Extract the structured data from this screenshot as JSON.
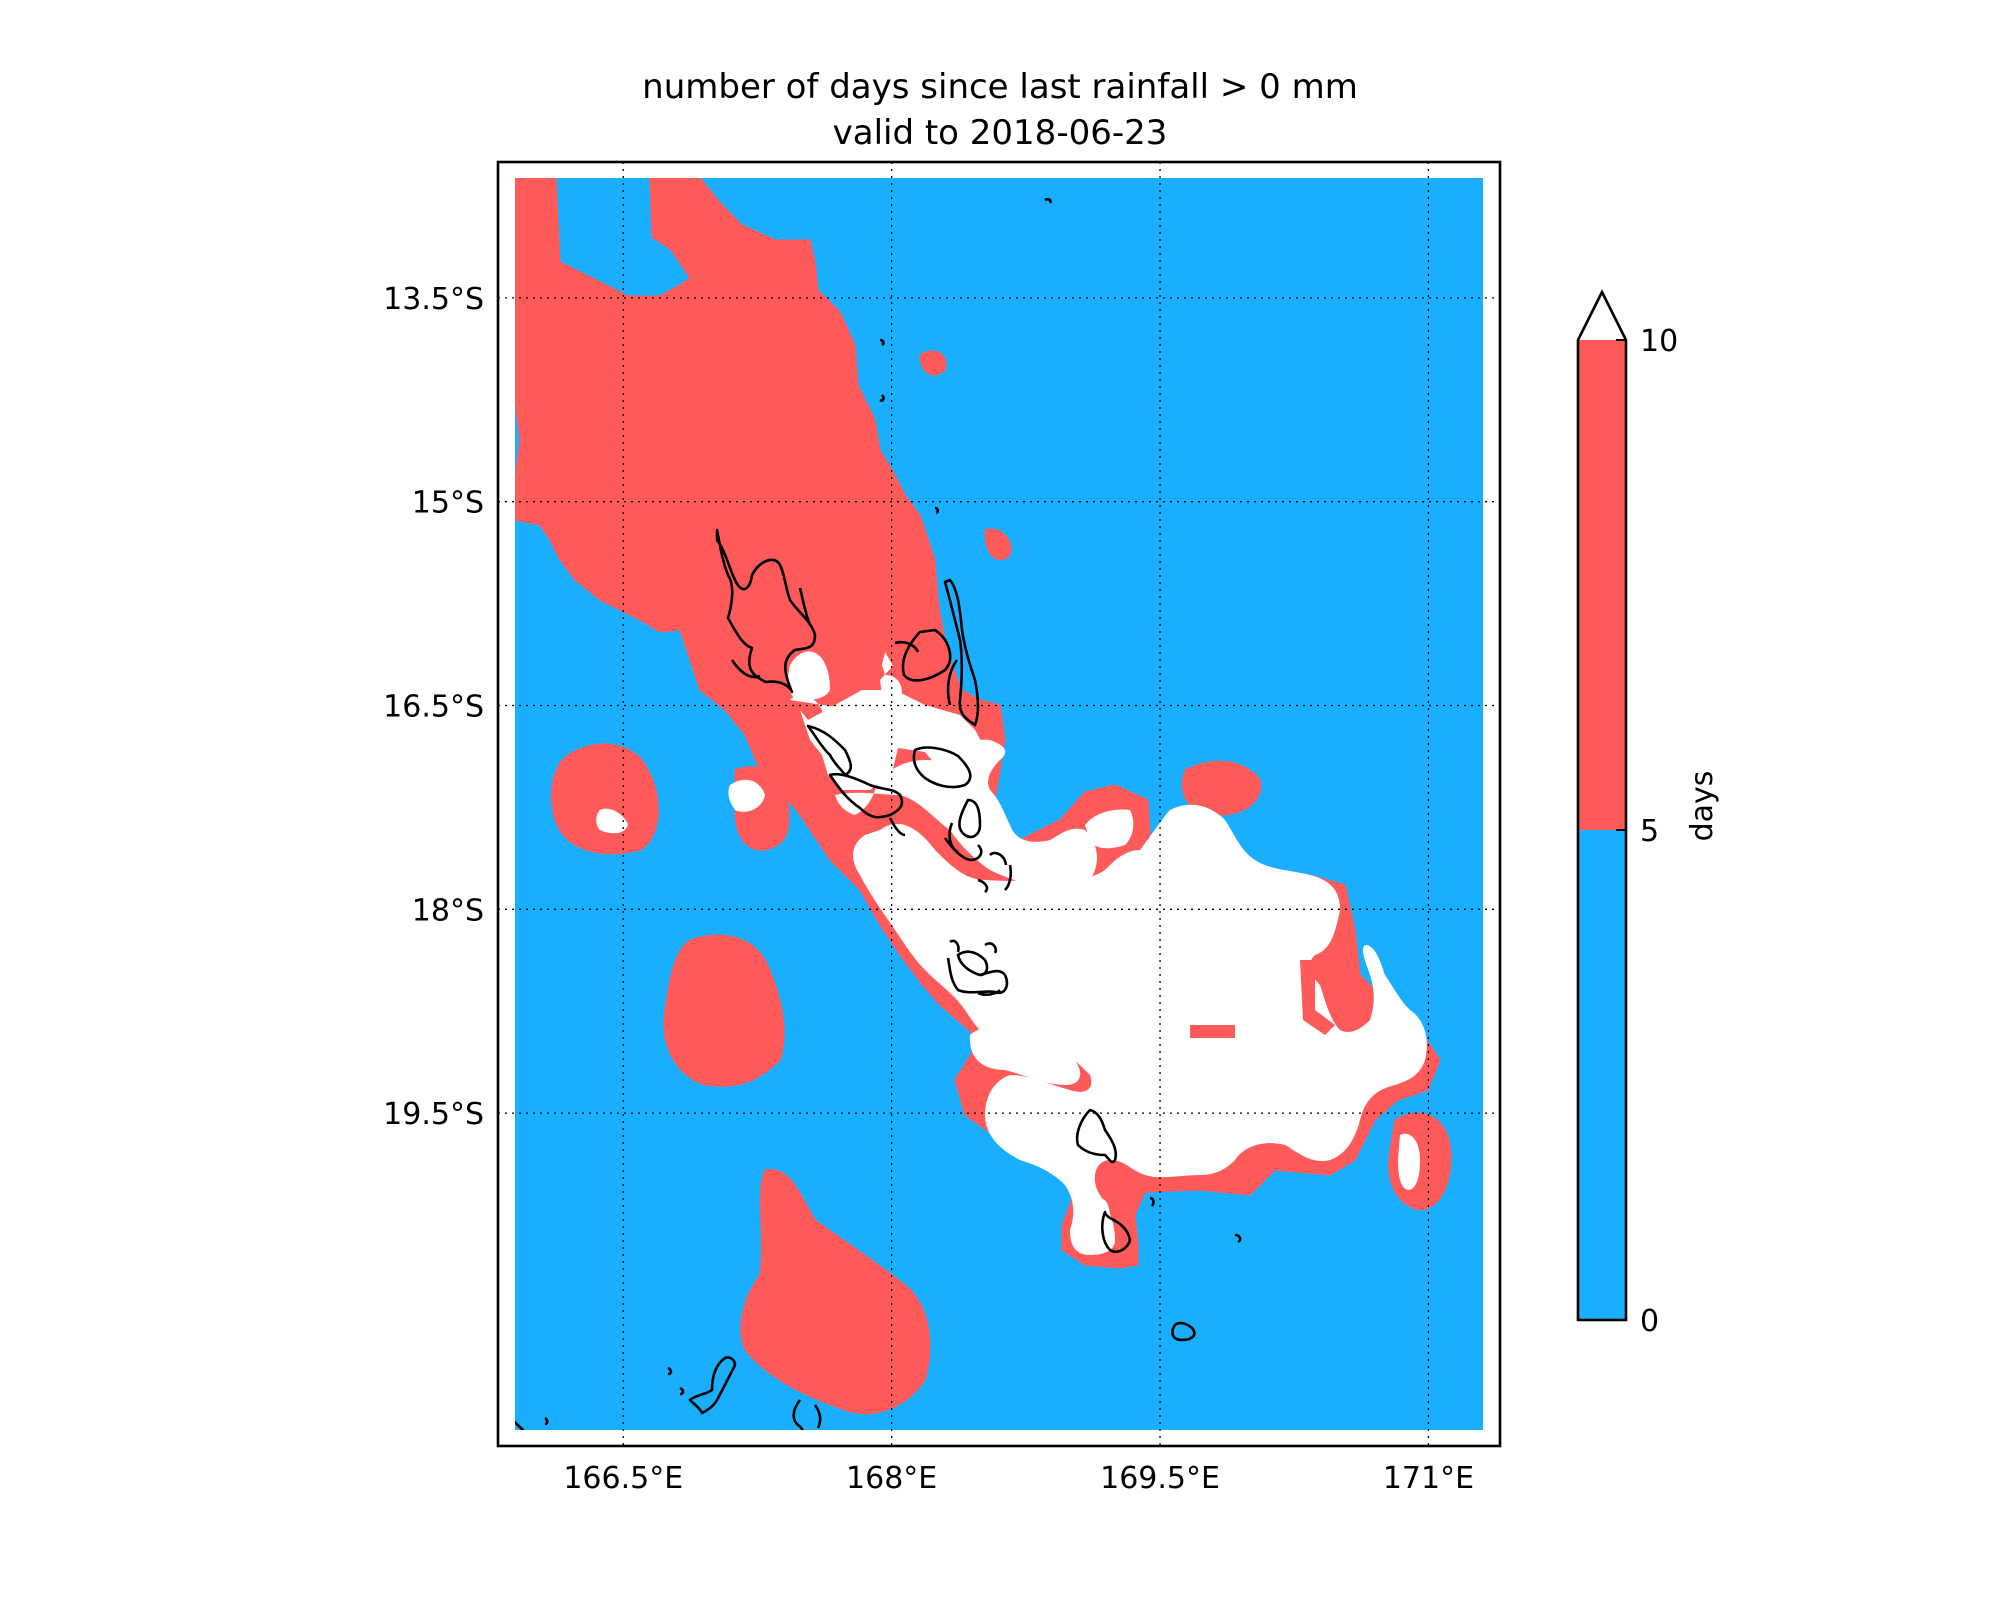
{
  "title": {
    "line1": "number of days since last rainfall > 0 mm",
    "line2": "valid to 2018-06-23"
  },
  "map": {
    "lon_range": [
      165.8,
      171.4
    ],
    "lat_range": [
      -21.95,
      -12.5
    ],
    "lon_ticks": [
      {
        "value": 166.5,
        "label": "166.5°E"
      },
      {
        "value": 168.0,
        "label": "168°E"
      },
      {
        "value": 169.5,
        "label": "169.5°E"
      },
      {
        "value": 171.0,
        "label": "171°E"
      }
    ],
    "lat_ticks": [
      {
        "value": -13.5,
        "label": "13.5°S"
      },
      {
        "value": -15.0,
        "label": "15°S"
      },
      {
        "value": -16.5,
        "label": "16.5°S"
      },
      {
        "value": -18.0,
        "label": "18°S"
      },
      {
        "value": -19.5,
        "label": "19.5°S"
      }
    ],
    "gridlines": "dotted",
    "coastlines": true
  },
  "colorbar": {
    "label": "days",
    "ticks": [
      {
        "value": 0,
        "label": "0"
      },
      {
        "value": 5,
        "label": "5"
      },
      {
        "value": 10,
        "label": "10"
      }
    ],
    "extend": "max",
    "classes": [
      {
        "range": "0-5",
        "color": "#1aaeff"
      },
      {
        "range": "5-10",
        "color": "#ff5a5a"
      },
      {
        "range": ">10",
        "color": "#ffffff"
      }
    ]
  },
  "colors": {
    "low": "#1aaeff",
    "mid": "#ff5a5a",
    "high": "#ffffff",
    "coast": "#000000"
  }
}
